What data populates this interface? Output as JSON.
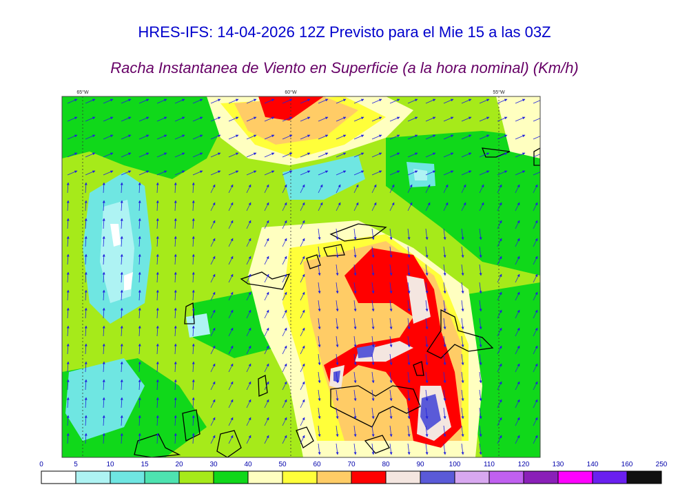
{
  "title": "HRES-IFS: 14-04-2026 12Z Previsto para el Mie 15 a las 03Z",
  "subtitle": "Racha Instantanea de Viento en Superficie (a la hora nominal) (Km/h)",
  "longitude_labels": [
    "65°W",
    "60°W",
    "55°W"
  ],
  "legend": {
    "ticks": [
      "0",
      "5",
      "10",
      "15",
      "20",
      "30",
      "40",
      "50",
      "60",
      "70",
      "80",
      "90",
      "100",
      "110",
      "120",
      "130",
      "140",
      "160",
      "250"
    ],
    "colors": [
      "#ffffff",
      "#aef3f3",
      "#6fe6e2",
      "#4ee3b0",
      "#a6ea1a",
      "#10d81a",
      "#ffffc0",
      "#ffff3a",
      "#ffcc66",
      "#ff0000",
      "#f4e6e0",
      "#5a5ad8",
      "#d8a8f0",
      "#c060f0",
      "#8a20b8",
      "#ff00ff",
      "#6a20f0",
      "#111111"
    ]
  },
  "field_colors": {
    "calm": "#a6ea1a",
    "green": "#10d81a",
    "cyan": "#6fe6e2",
    "light_cyan": "#aef3f3",
    "pale_yellow": "#ffffc0",
    "yellow": "#ffff3a",
    "orange": "#ffcc66",
    "red": "#ff0000",
    "pink": "#f4e6e0",
    "blue": "#5a5ad8",
    "arrow": "#2020dd"
  }
}
